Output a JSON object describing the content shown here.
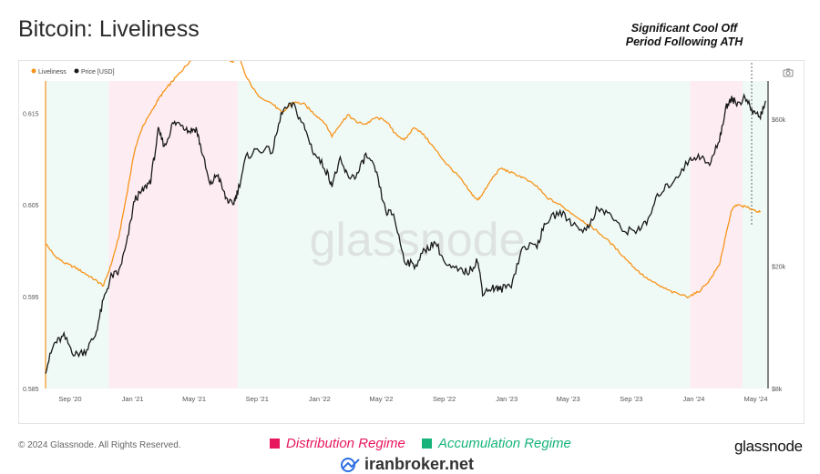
{
  "title": "Bitcoin: Liveliness",
  "annotation": [
    "Significant Cool Off",
    "Period Following ATH"
  ],
  "legend": [
    {
      "label": "Liveliness",
      "color": "#f7931a"
    },
    {
      "label": "Price [USD]",
      "color": "#1a1a1a"
    }
  ],
  "regimes": {
    "distribution": {
      "label": "Distribution Regime",
      "color": "#e8175d"
    },
    "accumulation": {
      "label": "Accumulation Regime",
      "color": "#16b37a"
    }
  },
  "footer": {
    "copyright": "© 2024 Glassnode. All Rights Reserved.",
    "brand": "glassnode",
    "watermark": "glassnode",
    "site": "iranbroker.net"
  },
  "chart_data": {
    "type": "line",
    "x_tick_labels": [
      "Sep '20",
      "Jan '21",
      "May '21",
      "Sep '21",
      "Jan '22",
      "May '22",
      "Sep '22",
      "Jan '23",
      "May '23",
      "Sep '23",
      "Jan '24",
      "May '24"
    ],
    "left_axis": {
      "ticks": [
        0.585,
        0.595,
        0.605,
        0.615
      ],
      "ylim": [
        0.585,
        0.6185
      ]
    },
    "right_axis": {
      "ticks": [
        "$8k",
        "$20k",
        "$60k"
      ],
      "scale": "log",
      "ylim": [
        8000,
        80000
      ]
    },
    "regime_bands": [
      {
        "regime": "accumulation",
        "start": "2020-07-15",
        "end": "2020-11-15"
      },
      {
        "regime": "distribution",
        "start": "2020-11-15",
        "end": "2021-07-25"
      },
      {
        "regime": "accumulation",
        "start": "2021-07-25",
        "end": "2023-12-25"
      },
      {
        "regime": "distribution",
        "start": "2023-12-25",
        "end": "2024-04-05"
      },
      {
        "regime": "accumulation",
        "start": "2024-04-05",
        "end": "2024-05-25"
      }
    ],
    "series": [
      {
        "name": "Liveliness",
        "axis": "left",
        "color": "#f7931a",
        "points": [
          [
            "2020-07-15",
            0.6008
          ],
          [
            "2020-08-01",
            0.5995
          ],
          [
            "2020-08-20",
            0.5987
          ],
          [
            "2020-09-10",
            0.5982
          ],
          [
            "2020-10-01",
            0.5975
          ],
          [
            "2020-10-20",
            0.5968
          ],
          [
            "2020-11-05",
            0.5962
          ],
          [
            "2020-11-20",
            0.5985
          ],
          [
            "2020-12-05",
            0.6015
          ],
          [
            "2020-12-20",
            0.606
          ],
          [
            "2021-01-05",
            0.611
          ],
          [
            "2021-01-20",
            0.6135
          ],
          [
            "2021-02-05",
            0.615
          ],
          [
            "2021-02-20",
            0.6165
          ],
          [
            "2021-03-05",
            0.6175
          ],
          [
            "2021-03-20",
            0.6185
          ],
          [
            "2021-04-05",
            0.6195
          ],
          [
            "2021-04-20",
            0.6205
          ],
          [
            "2021-05-05",
            0.6212
          ],
          [
            "2021-05-15",
            0.6218
          ],
          [
            "2021-06-01",
            0.6215
          ],
          [
            "2021-06-15",
            0.622
          ],
          [
            "2021-07-01",
            0.6212
          ],
          [
            "2021-07-15",
            0.6205
          ],
          [
            "2021-07-25",
            0.6215
          ],
          [
            "2021-08-10",
            0.619
          ],
          [
            "2021-09-01",
            0.617
          ],
          [
            "2021-10-01",
            0.616
          ],
          [
            "2021-10-20",
            0.615
          ],
          [
            "2021-11-10",
            0.6162
          ],
          [
            "2021-12-01",
            0.616
          ],
          [
            "2021-12-20",
            0.615
          ],
          [
            "2022-01-10",
            0.614
          ],
          [
            "2022-01-25",
            0.6125
          ],
          [
            "2022-02-10",
            0.6138
          ],
          [
            "2022-02-25",
            0.6148
          ],
          [
            "2022-03-15",
            0.614
          ],
          [
            "2022-04-01",
            0.6138
          ],
          [
            "2022-04-20",
            0.6145
          ],
          [
            "2022-05-10",
            0.6142
          ],
          [
            "2022-05-25",
            0.613
          ],
          [
            "2022-06-15",
            0.612
          ],
          [
            "2022-07-05",
            0.6135
          ],
          [
            "2022-07-25",
            0.6125
          ],
          [
            "2022-08-15",
            0.611
          ],
          [
            "2022-09-05",
            0.6095
          ],
          [
            "2022-10-01",
            0.608
          ],
          [
            "2022-10-20",
            0.6065
          ],
          [
            "2022-11-05",
            0.6055
          ],
          [
            "2022-11-15",
            0.6062
          ],
          [
            "2022-12-05",
            0.608
          ],
          [
            "2022-12-20",
            0.609
          ],
          [
            "2023-01-10",
            0.6085
          ],
          [
            "2023-02-01",
            0.608
          ],
          [
            "2023-03-01",
            0.607
          ],
          [
            "2023-03-20",
            0.6058
          ],
          [
            "2023-04-15",
            0.605
          ],
          [
            "2023-05-10",
            0.604
          ],
          [
            "2023-06-05",
            0.603
          ],
          [
            "2023-06-25",
            0.6022
          ],
          [
            "2023-07-20",
            0.601
          ],
          [
            "2023-08-15",
            0.5995
          ],
          [
            "2023-09-10",
            0.598
          ],
          [
            "2023-10-01",
            0.597
          ],
          [
            "2023-10-25",
            0.5962
          ],
          [
            "2023-11-20",
            0.5955
          ],
          [
            "2023-12-20",
            0.595
          ],
          [
            "2024-01-10",
            0.5955
          ],
          [
            "2024-02-01",
            0.5968
          ],
          [
            "2024-02-20",
            0.5985
          ],
          [
            "2024-03-05",
            0.602
          ],
          [
            "2024-03-15",
            0.6045
          ],
          [
            "2024-03-25",
            0.605
          ],
          [
            "2024-04-10",
            0.6048
          ],
          [
            "2024-04-25",
            0.6045
          ],
          [
            "2024-05-10",
            0.6042
          ]
        ]
      },
      {
        "name": "Price [USD]",
        "axis": "right",
        "color": "#1a1a1a",
        "points": [
          [
            "2020-07-15",
            9200
          ],
          [
            "2020-08-01",
            11200
          ],
          [
            "2020-08-20",
            11800
          ],
          [
            "2020-09-10",
            10300
          ],
          [
            "2020-10-01",
            10600
          ],
          [
            "2020-10-20",
            11900
          ],
          [
            "2020-11-05",
            15500
          ],
          [
            "2020-11-20",
            18500
          ],
          [
            "2020-12-05",
            19100
          ],
          [
            "2020-12-20",
            23500
          ],
          [
            "2021-01-05",
            33000
          ],
          [
            "2021-01-20",
            35000
          ],
          [
            "2021-02-05",
            38000
          ],
          [
            "2021-02-20",
            55000
          ],
          [
            "2021-03-05",
            49000
          ],
          [
            "2021-03-20",
            58000
          ],
          [
            "2021-04-05",
            58500
          ],
          [
            "2021-04-20",
            55000
          ],
          [
            "2021-05-05",
            56000
          ],
          [
            "2021-05-15",
            48000
          ],
          [
            "2021-06-01",
            36500
          ],
          [
            "2021-06-15",
            40000
          ],
          [
            "2021-07-01",
            33500
          ],
          [
            "2021-07-15",
            31500
          ],
          [
            "2021-07-25",
            35000
          ],
          [
            "2021-08-10",
            45000
          ],
          [
            "2021-09-01",
            48000
          ],
          [
            "2021-10-01",
            47500
          ],
          [
            "2021-10-20",
            64000
          ],
          [
            "2021-11-10",
            67000
          ],
          [
            "2021-12-01",
            57000
          ],
          [
            "2021-12-20",
            47000
          ],
          [
            "2022-01-10",
            42000
          ],
          [
            "2022-01-25",
            37000
          ],
          [
            "2022-02-10",
            44000
          ],
          [
            "2022-02-25",
            39000
          ],
          [
            "2022-03-15",
            39500
          ],
          [
            "2022-04-01",
            46000
          ],
          [
            "2022-04-20",
            41000
          ],
          [
            "2022-05-10",
            30000
          ],
          [
            "2022-05-25",
            29500
          ],
          [
            "2022-06-15",
            21000
          ],
          [
            "2022-07-05",
            20000
          ],
          [
            "2022-07-25",
            22500
          ],
          [
            "2022-08-15",
            24000
          ],
          [
            "2022-09-05",
            20000
          ],
          [
            "2022-10-01",
            19300
          ],
          [
            "2022-10-20",
            19200
          ],
          [
            "2022-11-05",
            21000
          ],
          [
            "2022-11-15",
            16500
          ],
          [
            "2022-12-05",
            17000
          ],
          [
            "2022-12-20",
            16800
          ],
          [
            "2023-01-10",
            17500
          ],
          [
            "2023-02-01",
            23000
          ],
          [
            "2023-03-01",
            23500
          ],
          [
            "2023-03-20",
            28000
          ],
          [
            "2023-04-15",
            30000
          ],
          [
            "2023-05-10",
            27500
          ],
          [
            "2023-06-05",
            26000
          ],
          [
            "2023-06-25",
            30500
          ],
          [
            "2023-07-20",
            29800
          ],
          [
            "2023-08-15",
            26000
          ],
          [
            "2023-09-10",
            26200
          ],
          [
            "2023-10-01",
            27500
          ],
          [
            "2023-10-25",
            34500
          ],
          [
            "2023-11-20",
            37500
          ],
          [
            "2023-12-20",
            43500
          ],
          [
            "2024-01-10",
            46000
          ],
          [
            "2024-02-01",
            42500
          ],
          [
            "2024-02-20",
            52000
          ],
          [
            "2024-03-05",
            66000
          ],
          [
            "2024-03-15",
            71000
          ],
          [
            "2024-03-25",
            67000
          ],
          [
            "2024-04-10",
            70500
          ],
          [
            "2024-04-25",
            63500
          ],
          [
            "2024-05-10",
            61500
          ],
          [
            "2024-05-20",
            69000
          ]
        ]
      }
    ]
  }
}
